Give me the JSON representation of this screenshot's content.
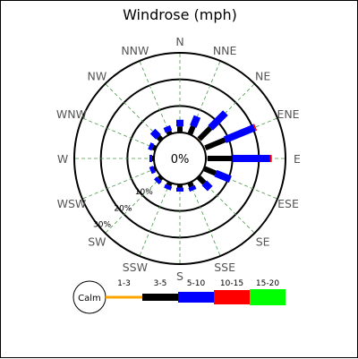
{
  "chart_data": {
    "type": "windrose",
    "title": "Windrose (mph)",
    "center_label": "0%",
    "directions": [
      "N",
      "NNE",
      "NE",
      "ENE",
      "E",
      "ESE",
      "SE",
      "SSE",
      "S",
      "SSW",
      "SW",
      "WSW",
      "W",
      "WNW",
      "NW",
      "NNW"
    ],
    "ring_labels": [
      "10%",
      "20%",
      "30%"
    ],
    "rmax_percent": 30,
    "calm_label": "Calm",
    "speed_bins": [
      {
        "label": "1-3",
        "color": "#ffa500"
      },
      {
        "label": "3-5",
        "color": "#000000"
      },
      {
        "label": "5-10",
        "color": "#0000ff"
      },
      {
        "label": "10-15",
        "color": "#ff0000"
      },
      {
        "label": "15-20",
        "color": "#00ff00"
      }
    ],
    "data_percent": {
      "N": [
        0.3,
        2.0,
        2.5,
        0,
        0
      ],
      "NNE": [
        0.3,
        3.0,
        4.0,
        0,
        0
      ],
      "NE": [
        0.5,
        6.0,
        8.0,
        0,
        0
      ],
      "ENE": [
        0.6,
        8.0,
        12.0,
        0.5,
        0
      ],
      "E": [
        0.6,
        9.5,
        14.0,
        0.7,
        0
      ],
      "ESE": [
        0.3,
        4.5,
        6.0,
        0,
        0
      ],
      "SE": [
        0.3,
        3.0,
        3.0,
        0,
        0
      ],
      "SSE": [
        0.2,
        1.5,
        1.5,
        0,
        0
      ],
      "S": [
        0.2,
        1.0,
        1.5,
        0,
        0
      ],
      "SSW": [
        0.2,
        1.0,
        1.5,
        0,
        0
      ],
      "SW": [
        0.2,
        1.0,
        1.5,
        0,
        0
      ],
      "WSW": [
        0.2,
        0.5,
        1.5,
        0,
        0
      ],
      "W": [
        0.2,
        0.5,
        1.0,
        0,
        0
      ],
      "WNW": [
        0.2,
        1.0,
        1.5,
        0,
        0
      ],
      "NW": [
        0.2,
        1.5,
        3.0,
        0,
        0
      ],
      "NNW": [
        0.2,
        1.0,
        2.0,
        0,
        0
      ]
    }
  }
}
